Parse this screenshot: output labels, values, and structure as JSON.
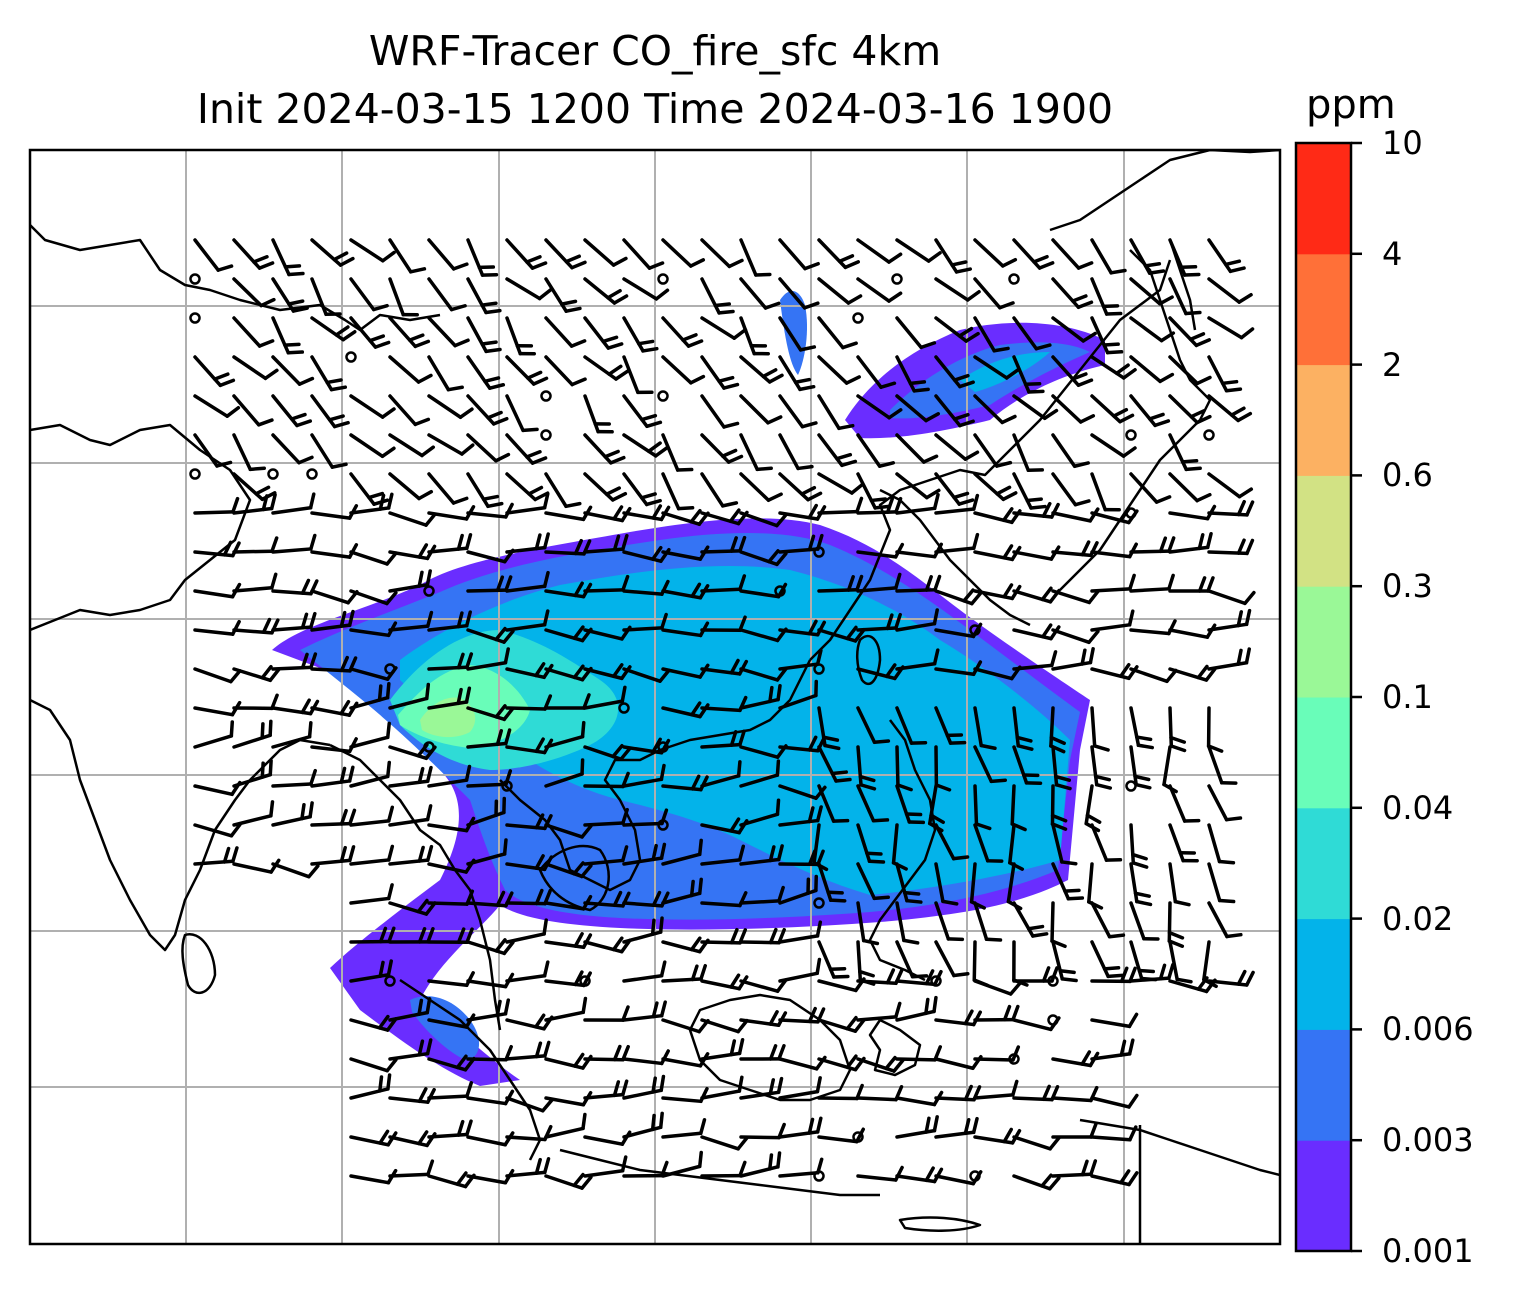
{
  "title": {
    "line1": "WRF-Tracer CO_fire_sfc 4km",
    "line2": "Init 2024-03-15 1200 Time 2024-03-16 1900"
  },
  "colorbar": {
    "unit": "ppm",
    "ticks": [
      "0.001",
      "0.003",
      "0.006",
      "0.02",
      "0.04",
      "0.1",
      "0.3",
      "0.6",
      "2",
      "4",
      "10"
    ],
    "colors": [
      "#6a2dff",
      "#3574f4",
      "#03b3ea",
      "#2fdbd6",
      "#69fdb9",
      "#9af897",
      "#d2e284",
      "#fcb162",
      "#ff7038",
      "#ff2a16"
    ]
  },
  "map": {
    "gridlines": true,
    "colors": {
      "coast": "#000000",
      "grid": "#b0b0b0"
    }
  }
}
